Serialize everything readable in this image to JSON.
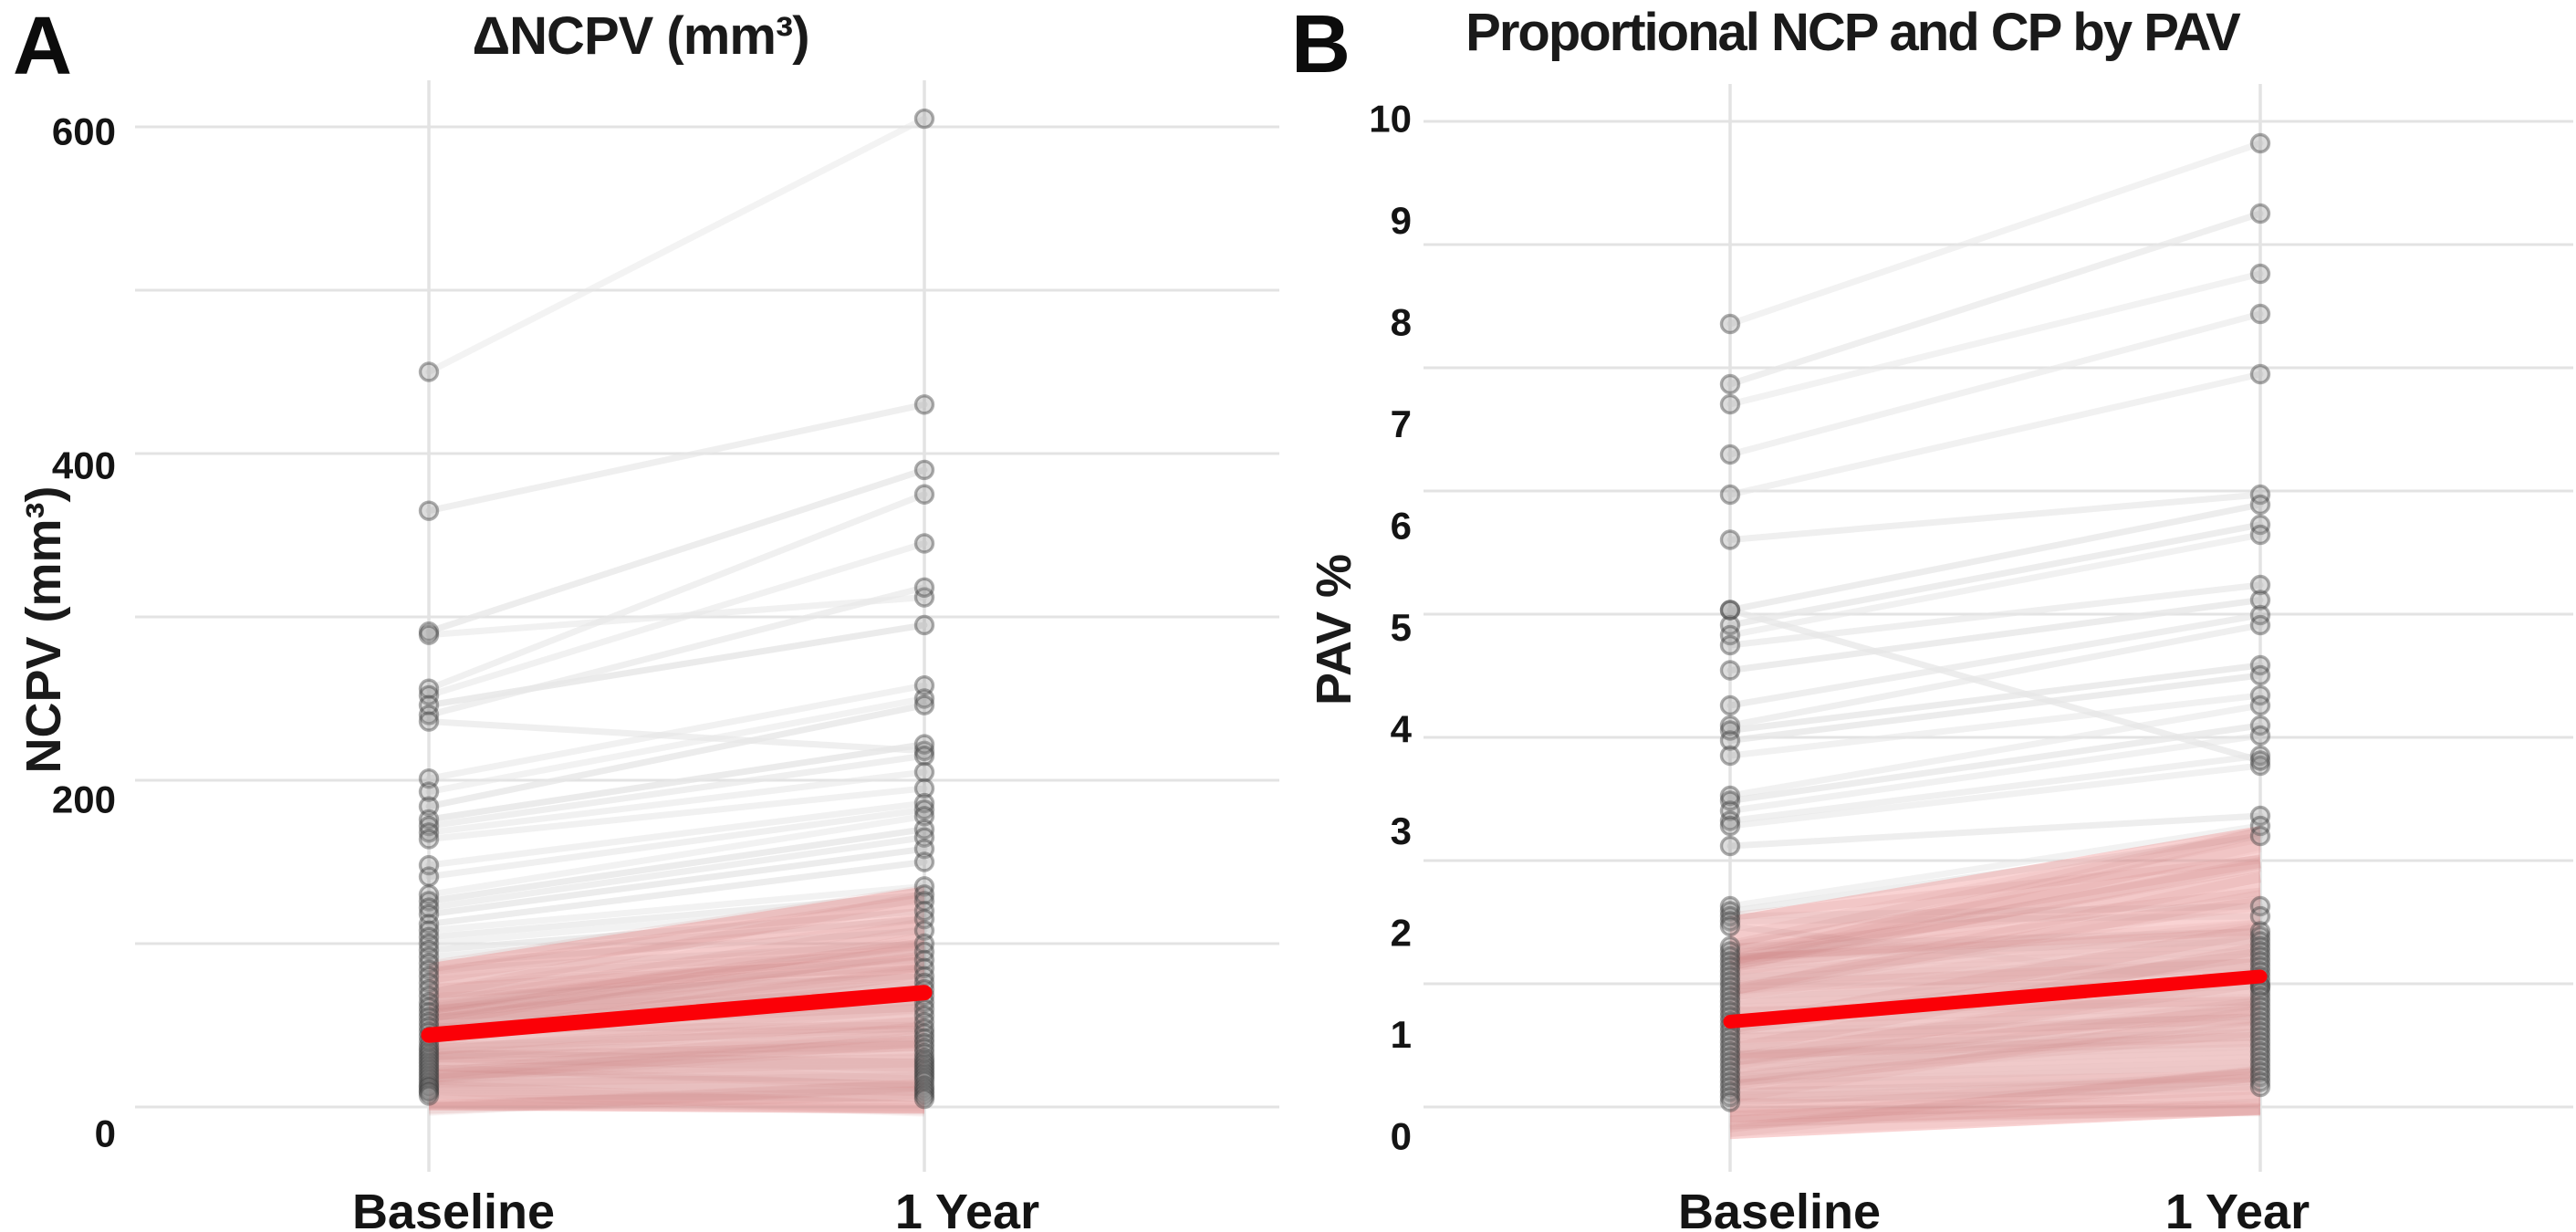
{
  "figure": {
    "background": "#ffffff"
  },
  "panels": [
    {
      "tag": "A",
      "title": "ΔNCPV (mm³)",
      "y_axis_title": "NCPV (mm³)",
      "x_categories": [
        "Baseline",
        "1 Year"
      ]
    },
    {
      "tag": "B",
      "title": "Proportional NCP and CP by PAV",
      "y_axis_title": "PAV %",
      "x_categories": [
        "Baseline",
        "1 Year"
      ]
    }
  ],
  "colors": {
    "trend_red": "#fb0007",
    "band_pink": "#f09696",
    "band_strand": "#c97f7f",
    "pair_line_gray": "#e7e7e7",
    "point_fill": "#8c8c8c",
    "point_stroke": "#3c3c3c",
    "grid_gray": "#e3e3e3",
    "text_black": "#141414"
  },
  "chart_data": [
    {
      "type": "line",
      "panel": "A",
      "title": "ΔNCPV (mm³)",
      "xlabel": "",
      "ylabel": "NCPV (mm³)",
      "categories": [
        "Baseline",
        "1 Year"
      ],
      "ylim": [
        0,
        620
      ],
      "y_tick_labels": [
        0,
        200,
        400,
        600
      ],
      "gridline_values": [
        0,
        100,
        200,
        300,
        400,
        500,
        600
      ],
      "legend": "none",
      "grid": "horizontal-and-category-columns",
      "pairs": [
        [
          450,
          605
        ],
        [
          365,
          430
        ],
        [
          291,
          390
        ],
        [
          289,
          312
        ],
        [
          256,
          375
        ],
        [
          252,
          345
        ],
        [
          246,
          295
        ],
        [
          240,
          318
        ],
        [
          236,
          218
        ],
        [
          201,
          258
        ],
        [
          193,
          250
        ],
        [
          184,
          246
        ],
        [
          176,
          222
        ],
        [
          172,
          215
        ],
        [
          168,
          205
        ],
        [
          164,
          195
        ],
        [
          148,
          186
        ],
        [
          141,
          182
        ],
        [
          130,
          178
        ],
        [
          126,
          170
        ],
        [
          122,
          165
        ],
        [
          118,
          158
        ],
        [
          112,
          150
        ],
        [
          108,
          135
        ],
        [
          104,
          130
        ],
        [
          100,
          126
        ],
        [
          96,
          120
        ],
        [
          92,
          115
        ],
        [
          88,
          108
        ],
        [
          84,
          100
        ],
        [
          80,
          95
        ],
        [
          76,
          90
        ],
        [
          72,
          85
        ],
        [
          68,
          80
        ],
        [
          64,
          76
        ],
        [
          61,
          72
        ],
        [
          58,
          68
        ],
        [
          55,
          64
        ],
        [
          52,
          60
        ],
        [
          49,
          56
        ],
        [
          46,
          52
        ],
        [
          43,
          48
        ],
        [
          40,
          45
        ],
        [
          37,
          42
        ],
        [
          35,
          39
        ],
        [
          33,
          36
        ],
        [
          31,
          33
        ],
        [
          29,
          30
        ],
        [
          27,
          28
        ],
        [
          25,
          26
        ],
        [
          23,
          24
        ],
        [
          21,
          22
        ],
        [
          19,
          20
        ],
        [
          17,
          18
        ],
        [
          15,
          16
        ],
        [
          13,
          13
        ],
        [
          12,
          11
        ],
        [
          10,
          9
        ],
        [
          9,
          7
        ],
        [
          7,
          5
        ]
      ],
      "trend": {
        "baseline": 44,
        "year": 70
      },
      "confidence_band": {
        "baseline": [
          -2,
          88
        ],
        "year": [
          -4,
          135
        ]
      }
    },
    {
      "type": "line",
      "panel": "B",
      "title": "Proportional NCP and CP by PAV",
      "xlabel": "",
      "ylabel": "PAV %",
      "categories": [
        "Baseline",
        "1 Year"
      ],
      "ylim": [
        0,
        10
      ],
      "y_tick_labels": [
        0,
        1,
        2,
        3,
        4,
        5,
        6,
        7,
        8,
        9,
        10
      ],
      "gridline_count": 9,
      "legend": "none",
      "grid": "horizontal-and-category-columns",
      "pairs": [
        [
          8.0,
          9.8
        ],
        [
          7.4,
          9.1
        ],
        [
          7.2,
          8.5
        ],
        [
          6.7,
          8.1
        ],
        [
          6.3,
          7.5
        ],
        [
          5.85,
          6.3
        ],
        [
          5.15,
          6.2
        ],
        [
          5.0,
          6.0
        ],
        [
          4.9,
          5.9
        ],
        [
          4.8,
          5.4
        ],
        [
          4.55,
          5.25
        ],
        [
          4.2,
          5.1
        ],
        [
          4.0,
          5.0
        ],
        [
          3.95,
          4.6
        ],
        [
          3.85,
          4.5
        ],
        [
          3.7,
          4.3
        ],
        [
          3.3,
          4.2
        ],
        [
          3.25,
          4.0
        ],
        [
          3.15,
          3.9
        ],
        [
          3.05,
          3.7
        ],
        [
          3.0,
          3.6
        ],
        [
          2.8,
          3.1
        ],
        [
          2.2,
          3.0
        ],
        [
          2.15,
          2.9
        ],
        [
          2.1,
          2.2
        ],
        [
          2.05,
          2.1
        ],
        [
          2.0,
          1.4
        ],
        [
          1.8,
          1.95
        ],
        [
          1.75,
          1.9
        ],
        [
          1.7,
          1.85
        ],
        [
          1.65,
          1.8
        ],
        [
          1.6,
          1.75
        ],
        [
          1.55,
          1.7
        ],
        [
          1.5,
          1.65
        ],
        [
          1.45,
          1.6
        ],
        [
          1.4,
          1.55
        ],
        [
          1.35,
          1.5
        ],
        [
          1.3,
          1.45
        ],
        [
          1.25,
          1.4
        ],
        [
          1.2,
          1.35
        ],
        [
          1.15,
          1.3
        ],
        [
          1.1,
          1.25
        ],
        [
          1.05,
          1.2
        ],
        [
          1.0,
          1.15
        ],
        [
          0.95,
          1.1
        ],
        [
          0.9,
          1.05
        ],
        [
          0.85,
          1.0
        ],
        [
          0.8,
          0.95
        ],
        [
          0.75,
          0.9
        ],
        [
          0.7,
          0.85
        ],
        [
          0.65,
          0.8
        ],
        [
          0.6,
          0.75
        ],
        [
          0.55,
          0.7
        ],
        [
          0.5,
          0.65
        ],
        [
          0.45,
          0.6
        ],
        [
          0.4,
          0.55
        ],
        [
          0.35,
          0.5
        ],
        [
          0.3,
          0.45
        ],
        [
          0.25,
          0.4
        ],
        [
          5.15,
          3.65
        ]
      ],
      "trend": {
        "baseline": 1.05,
        "year": 1.5
      },
      "confidence_band": {
        "baseline": [
          -0.12,
          2.1
        ],
        "year": [
          0.12,
          3.0
        ]
      }
    }
  ]
}
